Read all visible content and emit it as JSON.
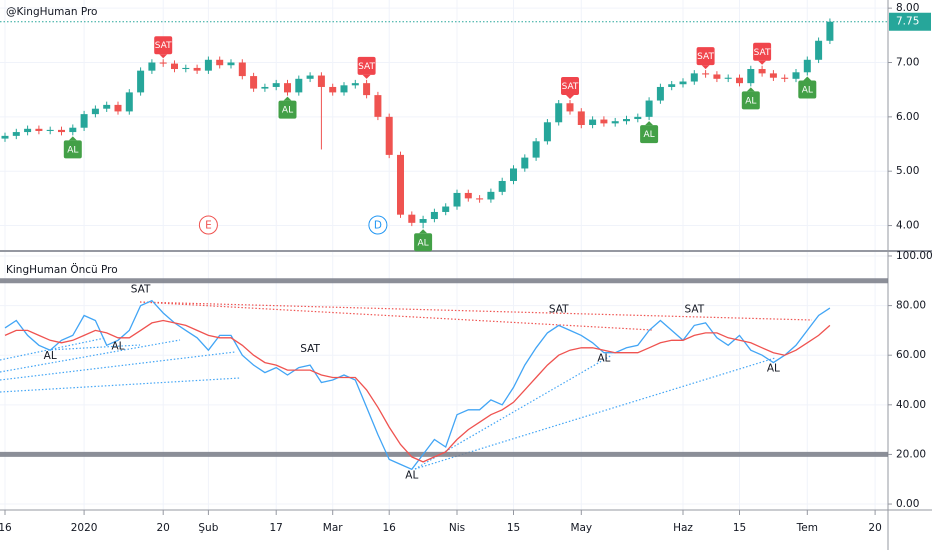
{
  "chart_data": [
    {
      "type": "candlestick",
      "title": "@KingHuman Pro",
      "categories": [
        "16",
        null,
        null,
        null,
        null,
        null,
        null,
        "2020",
        null,
        null,
        null,
        null,
        null,
        null,
        "20",
        null,
        null,
        null,
        "Şub",
        null,
        null,
        null,
        null,
        null,
        "17",
        null,
        null,
        null,
        null,
        "Mar",
        null,
        null,
        null,
        null,
        "16",
        null,
        null,
        null,
        null,
        null,
        "Nis",
        null,
        null,
        null,
        null,
        "15",
        null,
        null,
        null,
        null,
        null,
        "May",
        null,
        null,
        null,
        null,
        null,
        null,
        null,
        null,
        "Haz",
        null,
        null,
        null,
        null,
        "15",
        null,
        null,
        null,
        null,
        null,
        "Tem",
        null,
        null,
        null,
        null,
        null,
        "20"
      ],
      "open": [
        5.6,
        5.65,
        5.72,
        5.78,
        5.74,
        5.76,
        5.72,
        5.8,
        6.05,
        6.15,
        6.22,
        6.1,
        6.45,
        6.85,
        7.0,
        6.98,
        6.88,
        6.9,
        6.85,
        7.05,
        6.95,
        7.0,
        6.75,
        6.52,
        6.55,
        6.62,
        6.45,
        6.7,
        6.76,
        6.55,
        6.45,
        6.58,
        6.62,
        6.4,
        6.0,
        5.3,
        4.2,
        4.05,
        4.12,
        4.25,
        4.35,
        4.6,
        4.5,
        4.48,
        4.62,
        4.82,
        5.05,
        5.25,
        5.55,
        5.9,
        6.25,
        6.1,
        5.85,
        5.95,
        5.88,
        5.92,
        5.96,
        6.0,
        6.3,
        6.55,
        6.6,
        6.65,
        6.8,
        6.78,
        6.7,
        6.72,
        6.62,
        6.88,
        6.8,
        6.72,
        6.7,
        6.82,
        7.05,
        7.4,
        null,
        null,
        null,
        null
      ],
      "high": [
        5.71,
        5.78,
        5.84,
        5.84,
        5.82,
        5.82,
        5.86,
        6.11,
        6.21,
        6.28,
        6.28,
        6.51,
        6.91,
        7.06,
        7.06,
        7.04,
        6.96,
        6.96,
        7.11,
        7.11,
        7.06,
        7.06,
        6.81,
        6.61,
        6.68,
        6.68,
        6.76,
        6.82,
        6.82,
        6.61,
        6.64,
        6.68,
        6.68,
        6.46,
        6.06,
        5.36,
        4.26,
        4.18,
        4.31,
        4.41,
        4.66,
        4.66,
        4.56,
        4.68,
        4.88,
        5.11,
        5.31,
        5.61,
        5.96,
        6.31,
        6.31,
        6.16,
        6.01,
        6.01,
        5.98,
        6.02,
        6.06,
        6.36,
        6.61,
        6.66,
        6.71,
        6.86,
        6.86,
        6.84,
        6.78,
        6.78,
        6.94,
        6.94,
        6.86,
        6.78,
        6.88,
        7.11,
        7.46,
        7.81,
        null,
        null,
        null,
        null
      ],
      "low": [
        5.54,
        5.59,
        5.66,
        5.68,
        5.68,
        5.66,
        5.66,
        5.74,
        5.99,
        6.09,
        6.04,
        6.04,
        6.39,
        6.79,
        6.92,
        6.82,
        6.82,
        6.79,
        6.79,
        6.89,
        6.89,
        6.69,
        6.46,
        6.46,
        6.49,
        6.39,
        6.39,
        6.64,
        5.4,
        6.39,
        6.39,
        6.52,
        6.34,
        5.94,
        5.24,
        4.14,
        3.99,
        3.95,
        4.06,
        4.19,
        4.29,
        4.44,
        4.42,
        4.42,
        4.56,
        4.76,
        4.99,
        5.19,
        5.49,
        5.84,
        6.04,
        5.79,
        5.79,
        5.82,
        5.82,
        5.86,
        5.9,
        5.94,
        6.24,
        6.49,
        6.54,
        6.59,
        6.72,
        6.64,
        6.64,
        6.56,
        6.56,
        6.74,
        6.66,
        6.64,
        6.64,
        6.76,
        6.99,
        7.34,
        null,
        null,
        null,
        null
      ],
      "close": [
        5.65,
        5.72,
        5.78,
        5.74,
        5.76,
        5.72,
        5.8,
        6.05,
        6.15,
        6.22,
        6.1,
        6.45,
        6.85,
        7.0,
        6.98,
        6.88,
        6.9,
        6.85,
        7.05,
        6.95,
        7.0,
        6.75,
        6.52,
        6.55,
        6.62,
        6.45,
        6.7,
        6.76,
        6.55,
        6.45,
        6.58,
        6.62,
        6.4,
        6.0,
        5.3,
        4.2,
        4.05,
        4.12,
        4.25,
        4.35,
        4.6,
        4.5,
        4.48,
        4.62,
        4.82,
        5.05,
        5.25,
        5.55,
        5.9,
        6.25,
        6.1,
        5.85,
        5.95,
        5.88,
        5.92,
        5.96,
        6.0,
        6.3,
        6.55,
        6.6,
        6.65,
        6.8,
        6.78,
        6.7,
        6.72,
        6.62,
        6.88,
        6.8,
        6.72,
        6.7,
        6.82,
        7.05,
        7.4,
        7.75,
        null,
        null,
        null,
        null
      ],
      "up_color": "#26a69a",
      "down_color": "#ef5350",
      "signals": [
        null,
        null,
        null,
        null,
        null,
        null,
        "AL",
        null,
        null,
        null,
        null,
        null,
        null,
        null,
        "SAT",
        null,
        null,
        null,
        null,
        null,
        null,
        null,
        null,
        null,
        null,
        "AL",
        null,
        null,
        null,
        null,
        null,
        null,
        "SAT",
        null,
        null,
        null,
        null,
        "AL",
        null,
        null,
        null,
        null,
        null,
        null,
        null,
        null,
        null,
        null,
        null,
        null,
        "SAT",
        null,
        null,
        null,
        null,
        null,
        null,
        "AL",
        null,
        null,
        null,
        null,
        "SAT",
        null,
        null,
        null,
        "AL",
        "SAT",
        null,
        null,
        null,
        "AL",
        null,
        null,
        null,
        null,
        null,
        null
      ],
      "signal_colors": {
        "SAT": "#f0454c",
        "AL": "#43a047"
      },
      "events": [
        null,
        null,
        null,
        null,
        null,
        null,
        null,
        null,
        null,
        null,
        null,
        null,
        null,
        null,
        null,
        null,
        null,
        null,
        "E",
        null,
        null,
        null,
        null,
        null,
        null,
        null,
        null,
        null,
        null,
        null,
        null,
        null,
        null,
        "D",
        null,
        null,
        null,
        null,
        null,
        null,
        null,
        null,
        null,
        null,
        null,
        null,
        null,
        null,
        null,
        null,
        null,
        null,
        null,
        null,
        null,
        null,
        null,
        null,
        null,
        null,
        null,
        null,
        null,
        null,
        null,
        null,
        null,
        null,
        null,
        null,
        null,
        null,
        null,
        null,
        null,
        null,
        null,
        null
      ],
      "event_colors": {
        "E": "#ef5350",
        "D": "#2196f3"
      },
      "last_price": 7.75,
      "last_price_color": "#26a69a",
      "ylim": [
        3.55,
        8.15
      ],
      "yticks": [
        {
          "value": 4,
          "label": "4.00"
        },
        {
          "value": 5,
          "label": "5.00"
        },
        {
          "value": 6,
          "label": "6.00"
        },
        {
          "value": 7,
          "label": "7.00"
        },
        {
          "value": 8,
          "label": "8.00"
        }
      ],
      "grid": true
    },
    {
      "type": "line",
      "title": "KingHuman Öncü Pro",
      "series": [
        {
          "color": "#42a5f5",
          "values": [
            71,
            74,
            68,
            64,
            62,
            66,
            68,
            76,
            74,
            64,
            66,
            70,
            80,
            82,
            77,
            73,
            70,
            67,
            62,
            68,
            68,
            60,
            56,
            53,
            55,
            52,
            55,
            56,
            49,
            50,
            52,
            50,
            39,
            28,
            18,
            16,
            14,
            20,
            26,
            23,
            36,
            38,
            38,
            42,
            40,
            47,
            56,
            63,
            69,
            72,
            70,
            68,
            65,
            61,
            61,
            63,
            64,
            70,
            74,
            70,
            66,
            72,
            73,
            67,
            64,
            68,
            62,
            60,
            57,
            60,
            64,
            70,
            76,
            79,
            null,
            null,
            null,
            null
          ]
        },
        {
          "color": "#ef5350",
          "values": [
            68,
            70,
            70,
            68,
            66,
            65,
            66,
            68,
            70,
            69,
            67,
            67,
            70,
            73,
            74,
            73,
            72,
            70,
            68,
            67,
            67,
            64,
            60,
            57,
            56,
            54,
            54,
            54,
            52,
            51,
            51,
            51,
            46,
            39,
            31,
            24,
            19,
            17,
            19,
            21,
            26,
            30,
            33,
            36,
            38,
            41,
            46,
            51,
            56,
            60,
            62,
            63,
            63,
            62,
            61,
            61,
            61,
            63,
            65,
            66,
            66,
            68,
            69,
            69,
            67,
            66,
            65,
            63,
            61,
            60,
            62,
            65,
            68,
            72,
            null,
            null,
            null,
            null
          ]
        }
      ],
      "levels": [
        90,
        20
      ],
      "level_color": "#787b86",
      "signals": [
        null,
        null,
        null,
        null,
        "AL",
        null,
        null,
        null,
        null,
        null,
        "AL",
        null,
        "SAT",
        null,
        null,
        null,
        null,
        null,
        null,
        null,
        null,
        null,
        null,
        null,
        null,
        null,
        null,
        "SAT",
        null,
        null,
        null,
        null,
        null,
        null,
        null,
        null,
        "AL",
        null,
        null,
        null,
        null,
        null,
        null,
        null,
        null,
        null,
        null,
        null,
        null,
        "SAT",
        null,
        null,
        null,
        "AL",
        null,
        null,
        null,
        null,
        null,
        null,
        null,
        "SAT",
        null,
        null,
        null,
        null,
        null,
        null,
        "AL",
        null,
        null,
        null,
        null,
        null,
        null,
        null,
        null,
        null
      ],
      "signal_colors": {
        "SAT": "#131722",
        "AL": "#131722"
      },
      "ylim": [
        -2.4,
        101.6
      ],
      "yticks": [
        {
          "value": 0,
          "label": "0.00"
        },
        {
          "value": 20,
          "label": "20.00"
        },
        {
          "value": 40,
          "label": "40.00"
        },
        {
          "value": 60,
          "label": "60.00"
        },
        {
          "value": 80,
          "label": "80.00"
        },
        {
          "value": 100,
          "label": "100.00"
        }
      ],
      "grid": true
    }
  ]
}
